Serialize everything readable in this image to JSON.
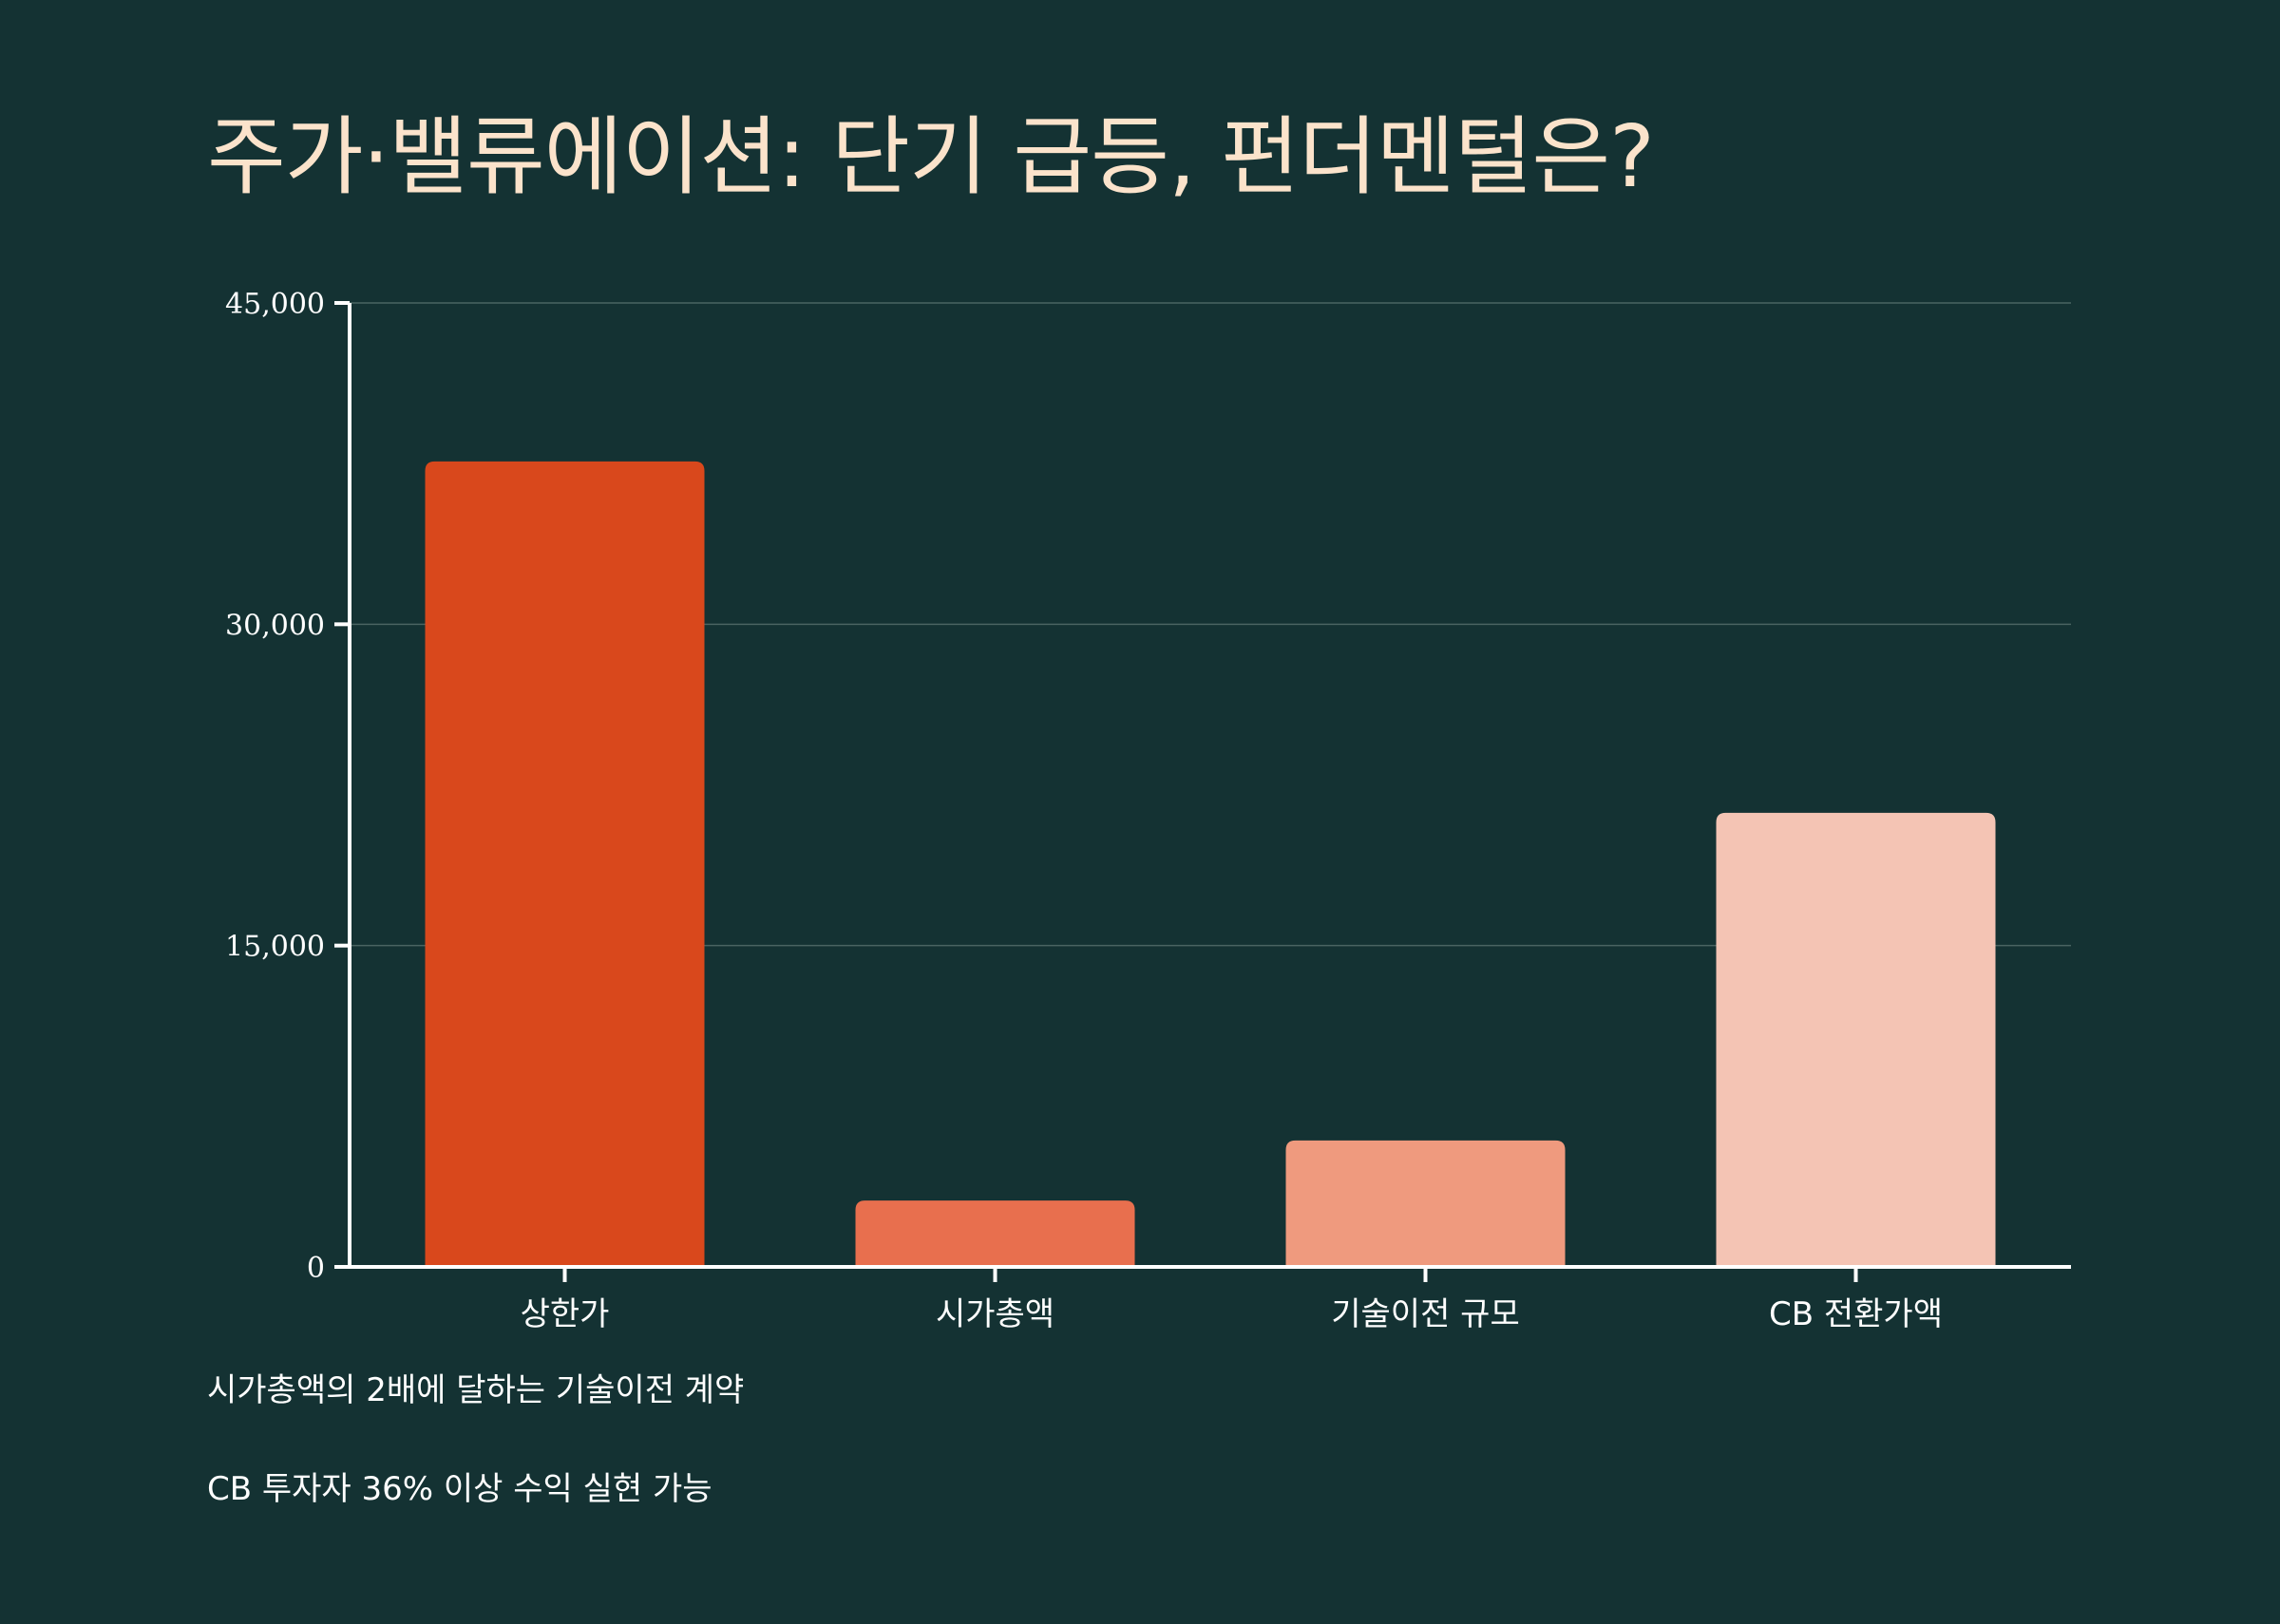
{
  "title": "주가·밸류에이션: 단기 급등, 펀더멘털은?",
  "colors": {
    "background": "#143233",
    "title": "#fbe3cb",
    "axis": "#ffffff",
    "grid": "#4a6462",
    "bars": [
      "#d9481c",
      "#e86f4e",
      "#ef9a7e",
      "#f4c4b4"
    ]
  },
  "chart_data": {
    "type": "bar",
    "categories": [
      "상한가",
      "시가총액",
      "기술이전 규모",
      "CB 전환가액"
    ],
    "values": [
      37600,
      3100,
      5900,
      21200
    ],
    "ylim": [
      0,
      45000
    ],
    "yticks": [
      0,
      15000,
      30000,
      45000
    ],
    "ytick_labels": [
      "0",
      "15,000",
      "30,000",
      "45,000"
    ],
    "grid": true,
    "legend": "none",
    "xlabel": "",
    "ylabel": ""
  },
  "notes": [
    "시가총액의 2배에 달하는 기술이전 계약",
    "CB 투자자 36% 이상 수익 실현 가능"
  ]
}
